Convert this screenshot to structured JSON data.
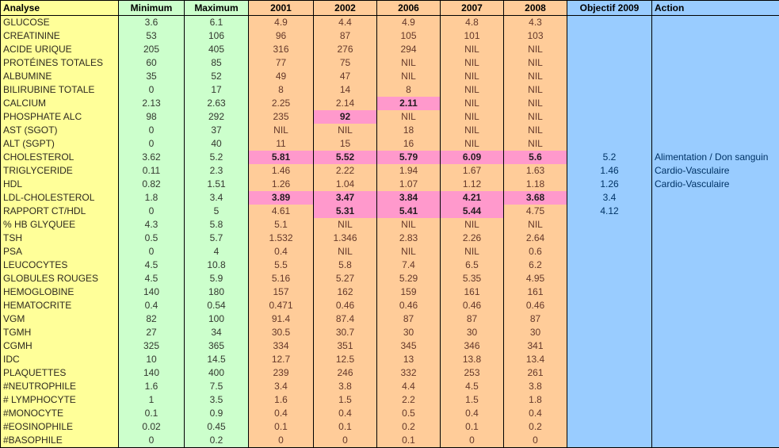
{
  "colors": {
    "analyse_bg": "#FFFF99",
    "minmax_bg": "#CCFFCC",
    "year_bg": "#FFCC99",
    "highlight_bg": "#FF99CC",
    "objective_action_bg": "#99CCFF",
    "objective_action_text": "#003366",
    "grid": "#000000"
  },
  "table": {
    "columns": [
      {
        "key": "analyse",
        "label": "Analyse"
      },
      {
        "key": "min",
        "label": "Minimum"
      },
      {
        "key": "max",
        "label": "Maximum"
      },
      {
        "key": "y2001",
        "label": "2001"
      },
      {
        "key": "y2002",
        "label": "2002"
      },
      {
        "key": "y2006",
        "label": "2006"
      },
      {
        "key": "y2007",
        "label": "2007"
      },
      {
        "key": "y2008",
        "label": "2008"
      },
      {
        "key": "obj",
        "label": "Objectif 2009"
      },
      {
        "key": "action",
        "label": "Action"
      }
    ],
    "rows": [
      {
        "analyse": "GLUCOSE",
        "min": "3.6",
        "max": "6.1",
        "values": [
          "4.9",
          "4.4",
          "4.9",
          "4.8",
          "4.3"
        ],
        "highlight": [],
        "obj": "",
        "action": ""
      },
      {
        "analyse": "CREATININE",
        "min": "53",
        "max": "106",
        "values": [
          "96",
          "87",
          "105",
          "101",
          "103"
        ],
        "highlight": [],
        "obj": "",
        "action": ""
      },
      {
        "analyse": "ACIDE URIQUE",
        "min": "205",
        "max": "405",
        "values": [
          "316",
          "276",
          "294",
          "NIL",
          "NIL"
        ],
        "highlight": [],
        "obj": "",
        "action": ""
      },
      {
        "analyse": "PROTÉINES TOTALES",
        "min": "60",
        "max": "85",
        "values": [
          "77",
          "75",
          "NIL",
          "NIL",
          "NIL"
        ],
        "highlight": [],
        "obj": "",
        "action": ""
      },
      {
        "analyse": "ALBUMINE",
        "min": "35",
        "max": "52",
        "values": [
          "49",
          "47",
          "NIL",
          "NIL",
          "NIL"
        ],
        "highlight": [],
        "obj": "",
        "action": ""
      },
      {
        "analyse": "BILIRUBINE TOTALE",
        "min": "0",
        "max": "17",
        "values": [
          "8",
          "14",
          "8",
          "NIL",
          "NIL"
        ],
        "highlight": [],
        "obj": "",
        "action": ""
      },
      {
        "analyse": "CALCIUM",
        "min": "2.13",
        "max": "2.63",
        "values": [
          "2.25",
          "2.14",
          "2.11",
          "NIL",
          "NIL"
        ],
        "highlight": [
          2
        ],
        "obj": "",
        "action": ""
      },
      {
        "analyse": "PHOSPHATE ALC",
        "min": "98",
        "max": "292",
        "values": [
          "235",
          "92",
          "NIL",
          "NIL",
          "NIL"
        ],
        "highlight": [
          1
        ],
        "obj": "",
        "action": ""
      },
      {
        "analyse": "AST (SGOT)",
        "min": "0",
        "max": "37",
        "values": [
          "NIL",
          "NIL",
          "18",
          "NIL",
          "NIL"
        ],
        "highlight": [],
        "obj": "",
        "action": ""
      },
      {
        "analyse": "ALT (SGPT)",
        "min": "0",
        "max": "40",
        "values": [
          "11",
          "15",
          "16",
          "NIL",
          "NIL"
        ],
        "highlight": [],
        "obj": "",
        "action": ""
      },
      {
        "analyse": "CHOLESTEROL",
        "min": "3.62",
        "max": "5.2",
        "values": [
          "5.81",
          "5.52",
          "5.79",
          "6.09",
          "5.6"
        ],
        "highlight": [
          0,
          1,
          2,
          3,
          4
        ],
        "obj": "5.2",
        "action": "Alimentation / Don sanguin"
      },
      {
        "analyse": "TRIGLYCERIDE",
        "min": "0.11",
        "max": "2.3",
        "values": [
          "1.46",
          "2.22",
          "1.94",
          "1.67",
          "1.63"
        ],
        "highlight": [],
        "obj": "1.46",
        "action": "Cardio-Vasculaire"
      },
      {
        "analyse": "HDL",
        "min": "0.82",
        "max": "1.51",
        "values": [
          "1.26",
          "1.04",
          "1.07",
          "1.12",
          "1.18"
        ],
        "highlight": [],
        "obj": "1.26",
        "action": "Cardio-Vasculaire"
      },
      {
        "analyse": "LDL-CHOLESTEROL",
        "min": "1.8",
        "max": "3.4",
        "values": [
          "3.89",
          "3.47",
          "3.84",
          "4.21",
          "3.68"
        ],
        "highlight": [
          0,
          1,
          2,
          3,
          4
        ],
        "obj": "3.4",
        "action": ""
      },
      {
        "analyse": "RAPPORT CT/HDL",
        "min": "0",
        "max": "5",
        "values": [
          "4.61",
          "5.31",
          "5.41",
          "5.44",
          "4.75"
        ],
        "highlight": [
          1,
          2,
          3
        ],
        "obj": "4.12",
        "action": ""
      },
      {
        "analyse": "% HB GLYQUEE",
        "min": "4.3",
        "max": "5.8",
        "values": [
          "5.1",
          "NIL",
          "NIL",
          "NIL",
          "NIL"
        ],
        "highlight": [],
        "obj": "",
        "action": ""
      },
      {
        "analyse": "TSH",
        "min": "0.5",
        "max": "5.7",
        "values": [
          "1.532",
          "1.346",
          "2.83",
          "2.26",
          "2.64"
        ],
        "highlight": [],
        "obj": "",
        "action": ""
      },
      {
        "analyse": "PSA",
        "min": "0",
        "max": "4",
        "values": [
          "0.4",
          "NIL",
          "NIL",
          "NIL",
          "0.6"
        ],
        "highlight": [],
        "obj": "",
        "action": ""
      },
      {
        "analyse": "LEUCOCYTES",
        "min": "4.5",
        "max": "10.8",
        "values": [
          "5.5",
          "5.8",
          "7.4",
          "6.5",
          "6.2"
        ],
        "highlight": [],
        "obj": "",
        "action": ""
      },
      {
        "analyse": "GLOBULES ROUGES",
        "min": "4.5",
        "max": "5.9",
        "values": [
          "5.16",
          "5.27",
          "5.29",
          "5.35",
          "4.95"
        ],
        "highlight": [],
        "obj": "",
        "action": ""
      },
      {
        "analyse": "HEMOGLOBINE",
        "min": "140",
        "max": "180",
        "values": [
          "157",
          "162",
          "159",
          "161",
          "161"
        ],
        "highlight": [],
        "obj": "",
        "action": ""
      },
      {
        "analyse": "HEMATOCRITE",
        "min": "0.4",
        "max": "0.54",
        "values": [
          "0.471",
          "0.46",
          "0.46",
          "0.46",
          "0.46"
        ],
        "highlight": [],
        "obj": "",
        "action": ""
      },
      {
        "analyse": "VGM",
        "min": "82",
        "max": "100",
        "values": [
          "91.4",
          "87.4",
          "87",
          "87",
          "87"
        ],
        "highlight": [],
        "obj": "",
        "action": ""
      },
      {
        "analyse": "TGMH",
        "min": "27",
        "max": "34",
        "values": [
          "30.5",
          "30.7",
          "30",
          "30",
          "30"
        ],
        "highlight": [],
        "obj": "",
        "action": ""
      },
      {
        "analyse": "CGMH",
        "min": "325",
        "max": "365",
        "values": [
          "334",
          "351",
          "345",
          "346",
          "341"
        ],
        "highlight": [],
        "obj": "",
        "action": ""
      },
      {
        "analyse": "IDC",
        "min": "10",
        "max": "14.5",
        "values": [
          "12.7",
          "12.5",
          "13",
          "13.8",
          "13.4"
        ],
        "highlight": [],
        "obj": "",
        "action": ""
      },
      {
        "analyse": "PLAQUETTES",
        "min": "140",
        "max": "400",
        "values": [
          "239",
          "246",
          "332",
          "253",
          "261"
        ],
        "highlight": [],
        "obj": "",
        "action": ""
      },
      {
        "analyse": "#NEUTROPHILE",
        "min": "1.6",
        "max": "7.5",
        "values": [
          "3.4",
          "3.8",
          "4.4",
          "4.5",
          "3.8"
        ],
        "highlight": [],
        "obj": "",
        "action": ""
      },
      {
        "analyse": "# LYMPHOCYTE",
        "min": "1",
        "max": "3.5",
        "values": [
          "1.6",
          "1.5",
          "2.2",
          "1.5",
          "1.8"
        ],
        "highlight": [],
        "obj": "",
        "action": ""
      },
      {
        "analyse": "#MONOCYTE",
        "min": "0.1",
        "max": "0.9",
        "values": [
          "0.4",
          "0.4",
          "0.5",
          "0.4",
          "0.4"
        ],
        "highlight": [],
        "obj": "",
        "action": ""
      },
      {
        "analyse": "#EOSINOPHILE",
        "min": "0.02",
        "max": "0.45",
        "values": [
          "0.1",
          "0.1",
          "0.2",
          "0.1",
          "0.2"
        ],
        "highlight": [],
        "obj": "",
        "action": ""
      },
      {
        "analyse": "#BASOPHILE",
        "min": "0",
        "max": "0.2",
        "values": [
          "0",
          "0",
          "0.1",
          "0",
          "0"
        ],
        "highlight": [],
        "obj": "",
        "action": ""
      }
    ]
  }
}
